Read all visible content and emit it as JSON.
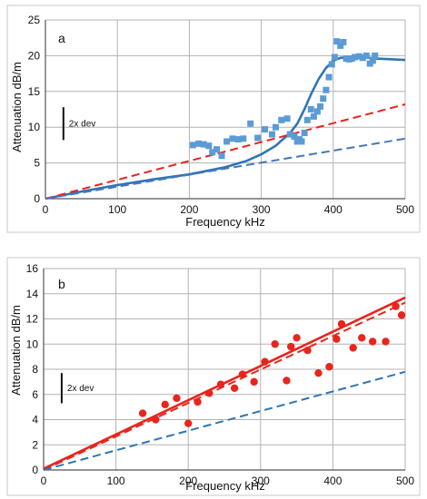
{
  "chart_data": [
    {
      "panel_label": "a",
      "type": "scatter",
      "xlabel": "Frequency  kHz",
      "ylabel": "Attenuation  dB/m",
      "xlim": [
        0,
        500
      ],
      "ylim": [
        0,
        25
      ],
      "xticks": [
        0,
        100,
        200,
        300,
        400,
        500
      ],
      "yticks": [
        0,
        5,
        10,
        15,
        20,
        25
      ],
      "grid": true,
      "scale_bar": {
        "label": "2x dev",
        "length": 4.6,
        "at": [
          25,
          10.5
        ]
      },
      "series": [
        {
          "kind": "points",
          "color": "#5b9bd5",
          "x": [
            205,
            213,
            220,
            227,
            232,
            238,
            245,
            252,
            260,
            268,
            275,
            285,
            295,
            305,
            315,
            320,
            328,
            336,
            340,
            346,
            350,
            353,
            356,
            360,
            364,
            369,
            373,
            378,
            382,
            386,
            390,
            394,
            398,
            402,
            405,
            410,
            414,
            418,
            422,
            426,
            430,
            436,
            441,
            446,
            451,
            455,
            458
          ],
          "y": [
            7.5,
            7.7,
            7.6,
            7.4,
            6.5,
            6.9,
            6.0,
            8.0,
            8.4,
            8.3,
            8.4,
            10.5,
            8.5,
            9.7,
            9.0,
            10.0,
            11.0,
            11.2,
            9.0,
            8.7,
            8.0,
            8.3,
            8.0,
            9.2,
            11.0,
            12.5,
            11.5,
            12.2,
            12.9,
            14.0,
            15.2,
            17.0,
            18.8,
            19.8,
            22.0,
            21.4,
            21.9,
            19.6,
            19.5,
            19.6,
            19.8,
            19.9,
            19.7,
            20.0,
            18.9,
            19.3,
            20.0
          ]
        },
        {
          "kind": "line",
          "color": "#2e75b6",
          "dash": false,
          "x": [
            0,
            50,
            100,
            150,
            200,
            250,
            280,
            300,
            320,
            340,
            350,
            360,
            370,
            380,
            390,
            400,
            410,
            420,
            440,
            460,
            480,
            500
          ],
          "y": [
            0,
            1.0,
            1.9,
            2.7,
            3.4,
            4.4,
            5.3,
            6.2,
            7.4,
            9.2,
            10.5,
            12.5,
            14.8,
            16.8,
            18.3,
            19.3,
            19.7,
            19.8,
            19.8,
            19.6,
            19.5,
            19.4
          ]
        },
        {
          "kind": "line",
          "color": "#e8251d",
          "dash": true,
          "x": [
            0,
            500
          ],
          "y": [
            0,
            13.2
          ]
        },
        {
          "kind": "line",
          "color": "#4676b8",
          "dash": true,
          "x": [
            0,
            500
          ],
          "y": [
            0,
            8.4
          ]
        }
      ]
    },
    {
      "panel_label": "b",
      "type": "scatter",
      "xlabel": "Frequency  kHz",
      "ylabel": "Attenuation  dB/m",
      "xlim": [
        0,
        500
      ],
      "ylim": [
        0,
        16
      ],
      "xticks": [
        0,
        100,
        200,
        300,
        400,
        500
      ],
      "yticks": [
        0,
        2,
        4,
        6,
        8,
        10,
        12,
        14,
        16
      ],
      "grid": true,
      "scale_bar": {
        "label": "2x dev",
        "length": 2.4,
        "at": [
          25,
          6.5
        ]
      },
      "series": [
        {
          "kind": "points",
          "color": "#e8251d",
          "x": [
            137,
            155,
            168,
            184,
            200,
            213,
            229,
            245,
            264,
            275,
            291,
            306,
            320,
            336,
            342,
            350,
            365,
            380,
            395,
            405,
            412,
            428,
            440,
            455,
            473,
            487,
            495
          ],
          "y": [
            4.5,
            4.0,
            5.2,
            5.7,
            3.7,
            5.4,
            6.1,
            6.8,
            6.5,
            7.6,
            7.0,
            8.6,
            10.0,
            7.1,
            9.8,
            10.5,
            9.5,
            7.7,
            8.2,
            10.4,
            11.6,
            9.7,
            10.5,
            10.2,
            10.2,
            13.0,
            12.3
          ]
        },
        {
          "kind": "line",
          "color": "#e8251d",
          "dash": false,
          "x": [
            0,
            500
          ],
          "y": [
            0.1,
            13.7
          ]
        },
        {
          "kind": "line",
          "color": "#e8251d",
          "dash": true,
          "x": [
            0,
            500
          ],
          "y": [
            0,
            13.3
          ]
        },
        {
          "kind": "line",
          "color": "#2e75b6",
          "dash": true,
          "x": [
            0,
            500
          ],
          "y": [
            0,
            7.8
          ]
        }
      ]
    }
  ]
}
